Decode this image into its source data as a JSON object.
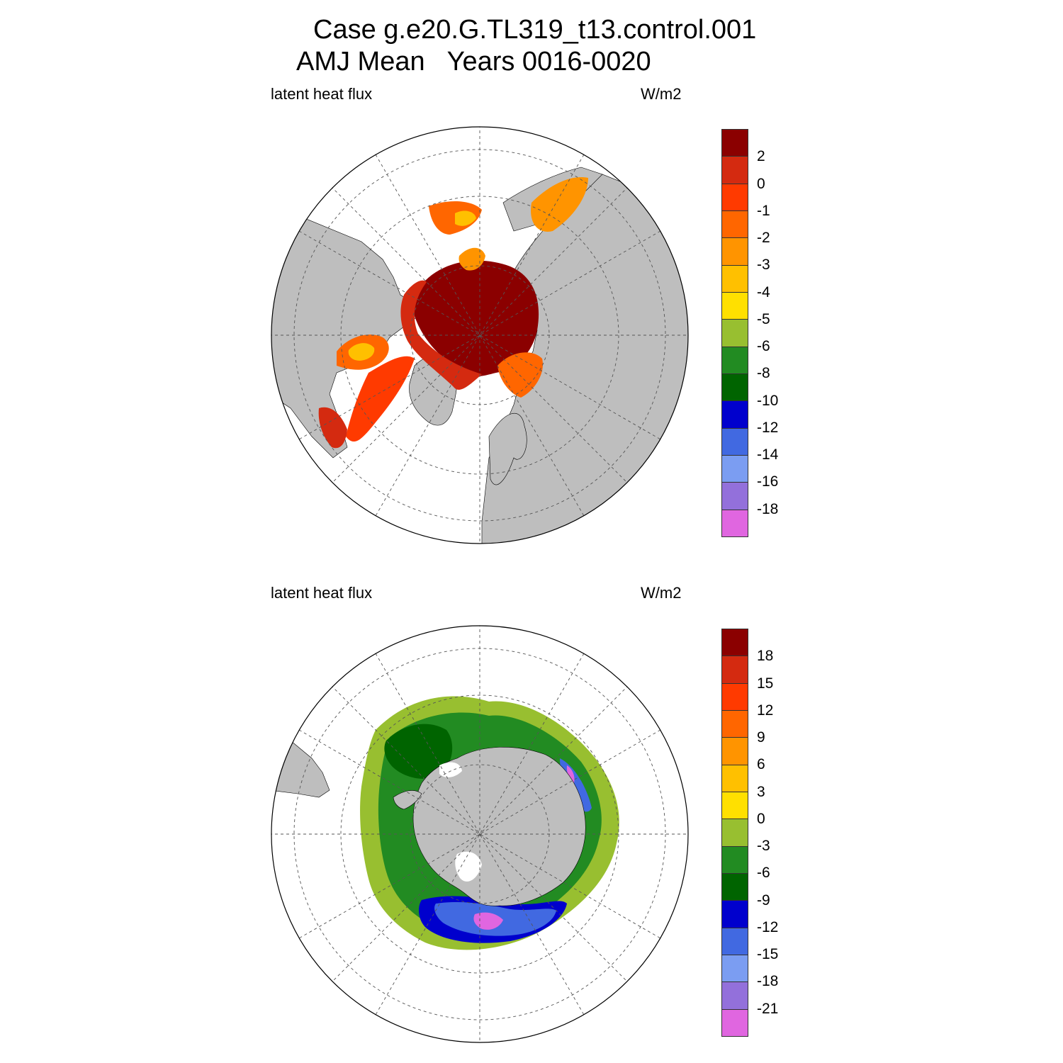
{
  "title_line1": "Case g.e20.G.TL319_t13.control.001",
  "title_line2": "AMJ Mean   Years 0016-0020",
  "panels": [
    {
      "left_label": "latent heat flux",
      "right_label": "W/m2",
      "hemisphere": "north",
      "colorbar": {
        "labels": [
          "2",
          "0",
          "-1",
          "-2",
          "-3",
          "-4",
          "-5",
          "-6",
          "-8",
          "-10",
          "-12",
          "-14",
          "-16",
          "-18"
        ],
        "colors": [
          "#8b0000",
          "#d42a10",
          "#ff3a00",
          "#ff6600",
          "#ff9400",
          "#ffc000",
          "#ffe000",
          "#98bf30",
          "#228b22",
          "#006400",
          "#0000cd",
          "#4169e1",
          "#7b9df2",
          "#9370db",
          "#e066e0"
        ]
      }
    },
    {
      "left_label": "latent heat flux",
      "right_label": "W/m2",
      "hemisphere": "south",
      "colorbar": {
        "labels": [
          "18",
          "15",
          "12",
          "9",
          "6",
          "3",
          "0",
          "-3",
          "-6",
          "-9",
          "-12",
          "-15",
          "-18",
          "-21"
        ],
        "colors": [
          "#8b0000",
          "#d42a10",
          "#ff3a00",
          "#ff6600",
          "#ff9400",
          "#ffc000",
          "#ffe000",
          "#98bf30",
          "#228b22",
          "#006400",
          "#0000cd",
          "#4169e1",
          "#7b9df2",
          "#9370db",
          "#e066e0"
        ]
      }
    }
  ],
  "colors": {
    "land": "#bebebe",
    "ocean": "#ffffff",
    "grid": "#555555"
  }
}
